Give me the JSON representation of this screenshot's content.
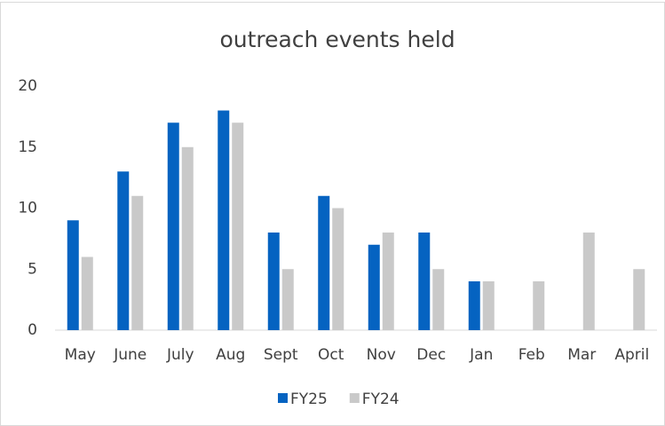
{
  "chart_data": {
    "type": "bar",
    "title": "outreach events held",
    "categories": [
      "May",
      "June",
      "July",
      "Aug",
      "Sept",
      "Oct",
      "Nov",
      "Dec",
      "Jan",
      "Feb",
      "Mar",
      "April"
    ],
    "series": [
      {
        "name": "FY25",
        "color": "#0563c1",
        "values": [
          9,
          13,
          17,
          18,
          8,
          11,
          7,
          8,
          4,
          null,
          null,
          null
        ]
      },
      {
        "name": "FY24",
        "color": "#c9c9c9",
        "values": [
          6,
          11,
          15,
          17,
          5,
          10,
          8,
          5,
          4,
          4,
          8,
          5
        ]
      }
    ],
    "ylim": [
      0,
      20
    ],
    "yticks": [
      0,
      5,
      10,
      15,
      20
    ],
    "grid": false,
    "legend": "bottom"
  }
}
